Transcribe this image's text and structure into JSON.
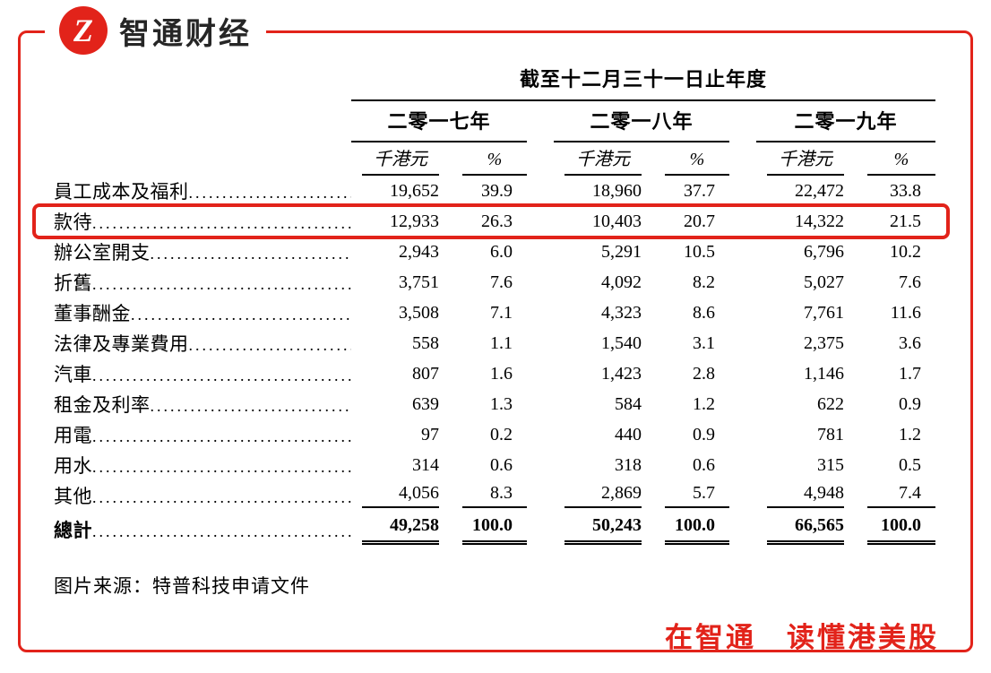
{
  "brand": {
    "logo_text": "智通财经",
    "logo_glyph": "Z"
  },
  "table": {
    "title": "截至十二月三十一日止年度",
    "year_headers": [
      "二零一七年",
      "二零一八年",
      "二零一九年"
    ],
    "sub_headers": {
      "amount": "千港元",
      "percent": "%"
    },
    "rows": [
      {
        "label": "員工成本及福利",
        "highlighted": false,
        "v": [
          "19,652",
          "39.9",
          "18,960",
          "37.7",
          "22,472",
          "33.8"
        ]
      },
      {
        "label": "款待",
        "highlighted": true,
        "v": [
          "12,933",
          "26.3",
          "10,403",
          "20.7",
          "14,322",
          "21.5"
        ]
      },
      {
        "label": "辦公室開支",
        "highlighted": false,
        "v": [
          "2,943",
          "6.0",
          "5,291",
          "10.5",
          "6,796",
          "10.2"
        ]
      },
      {
        "label": "折舊",
        "highlighted": false,
        "v": [
          "3,751",
          "7.6",
          "4,092",
          "8.2",
          "5,027",
          "7.6"
        ]
      },
      {
        "label": "董事酬金",
        "highlighted": false,
        "v": [
          "3,508",
          "7.1",
          "4,323",
          "8.6",
          "7,761",
          "11.6"
        ]
      },
      {
        "label": "法律及專業費用",
        "highlighted": false,
        "v": [
          "558",
          "1.1",
          "1,540",
          "3.1",
          "2,375",
          "3.6"
        ]
      },
      {
        "label": "汽車",
        "highlighted": false,
        "v": [
          "807",
          "1.6",
          "1,423",
          "2.8",
          "1,146",
          "1.7"
        ]
      },
      {
        "label": "租金及利率",
        "highlighted": false,
        "v": [
          "639",
          "1.3",
          "584",
          "1.2",
          "622",
          "0.9"
        ]
      },
      {
        "label": "用電",
        "highlighted": false,
        "v": [
          "97",
          "0.2",
          "440",
          "0.9",
          "781",
          "1.2"
        ]
      },
      {
        "label": "用水",
        "highlighted": false,
        "v": [
          "314",
          "0.6",
          "318",
          "0.6",
          "315",
          "0.5"
        ]
      },
      {
        "label": "其他",
        "highlighted": false,
        "v": [
          "4,056",
          "8.3",
          "2,869",
          "5.7",
          "4,948",
          "7.4"
        ]
      }
    ],
    "total": {
      "label": "總計",
      "v": [
        "49,258",
        "100.0",
        "50,243",
        "100.0",
        "66,565",
        "100.0"
      ]
    }
  },
  "source_note": "图片来源：特普科技申请文件",
  "slogan": "在智通　读懂港美股",
  "colors": {
    "brand_red": "#e2231a",
    "text": "#000000",
    "background": "#ffffff"
  }
}
